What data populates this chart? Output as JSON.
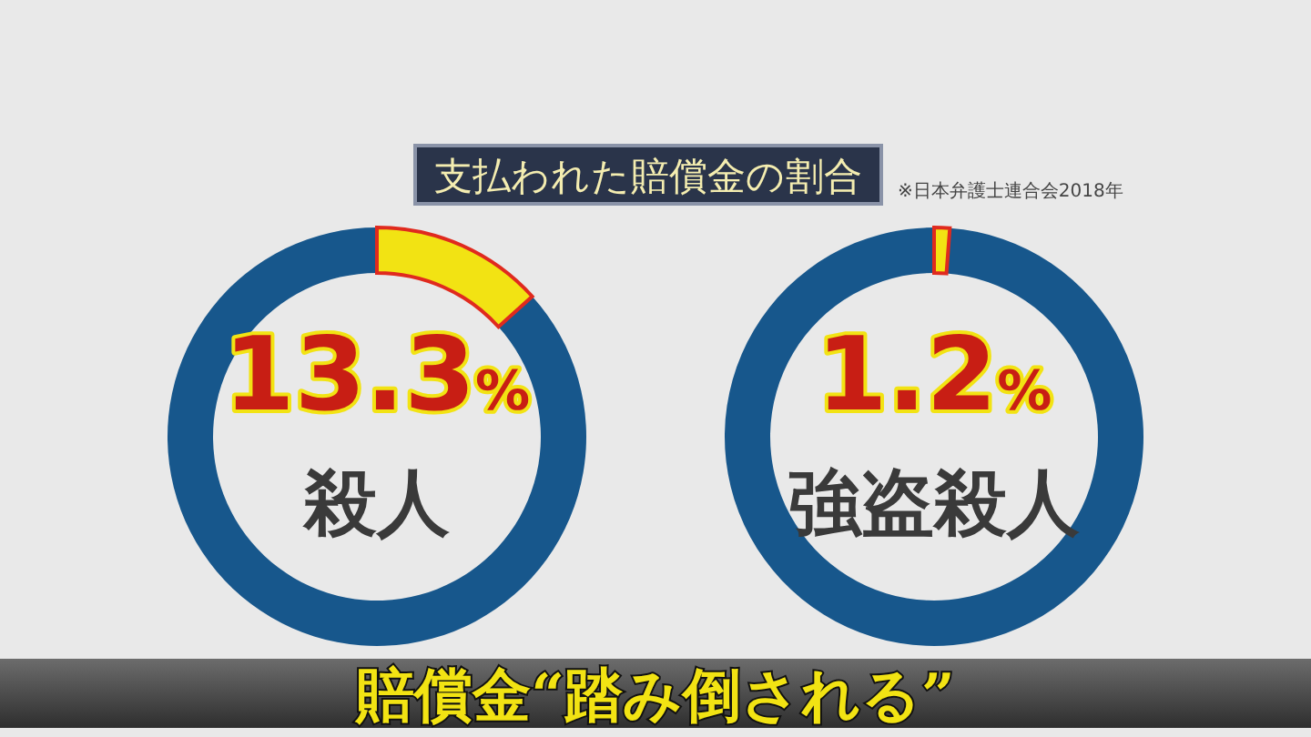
{
  "chart_data": [
    {
      "type": "donut",
      "title": "支払われた賠償金の割合",
      "subtitle": "殺人",
      "annotations": [
        "※日本弁護士連合会2018年"
      ],
      "categories": [
        null,
        null
      ],
      "values": [
        13.3,
        86.7
      ],
      "colors": [
        "#f2e313",
        "#17578c"
      ],
      "value_labels": [
        "13.3%",
        null
      ]
    },
    {
      "type": "donut",
      "subtitle": "強盗殺人",
      "annotations": [
        "賠償金“踏み倒される”"
      ],
      "categories": [
        null,
        null
      ],
      "values": [
        1.2,
        98.8
      ],
      "colors": [
        "#f2e313",
        "#17578c"
      ],
      "value_labels": [
        "1.2%",
        null
      ]
    }
  ]
}
